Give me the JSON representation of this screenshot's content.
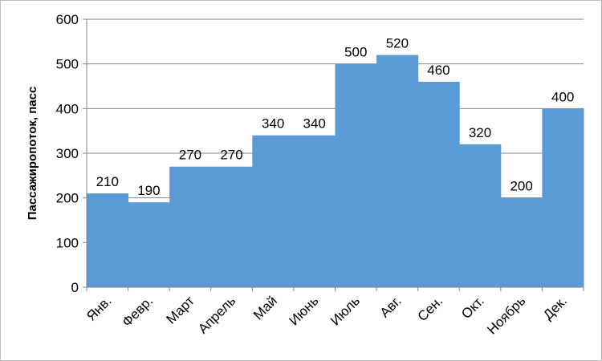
{
  "chart_data": {
    "type": "bar",
    "categories": [
      "Янв.",
      "Февр.",
      "Март",
      "Апрель",
      "Май",
      "Июнь",
      "Июль",
      "Авг.",
      "Сен.",
      "Окт.",
      "Ноябрь",
      "Дек."
    ],
    "values": [
      210,
      190,
      270,
      270,
      340,
      340,
      500,
      520,
      460,
      320,
      200,
      400
    ],
    "data_labels": [
      "210",
      "190",
      "270",
      "270",
      "340",
      "340",
      "500",
      "520",
      "460",
      "320",
      "200",
      "400"
    ],
    "title": "",
    "xlabel": "",
    "ylabel": "Пассажиропоток, пасс",
    "ylim": [
      0,
      600
    ],
    "yticks": [
      "0",
      "100",
      "200",
      "300",
      "400",
      "500",
      "600"
    ],
    "grid": true,
    "legend": "none",
    "bar_color": "#5b9bd5",
    "bar_gap": 0
  }
}
